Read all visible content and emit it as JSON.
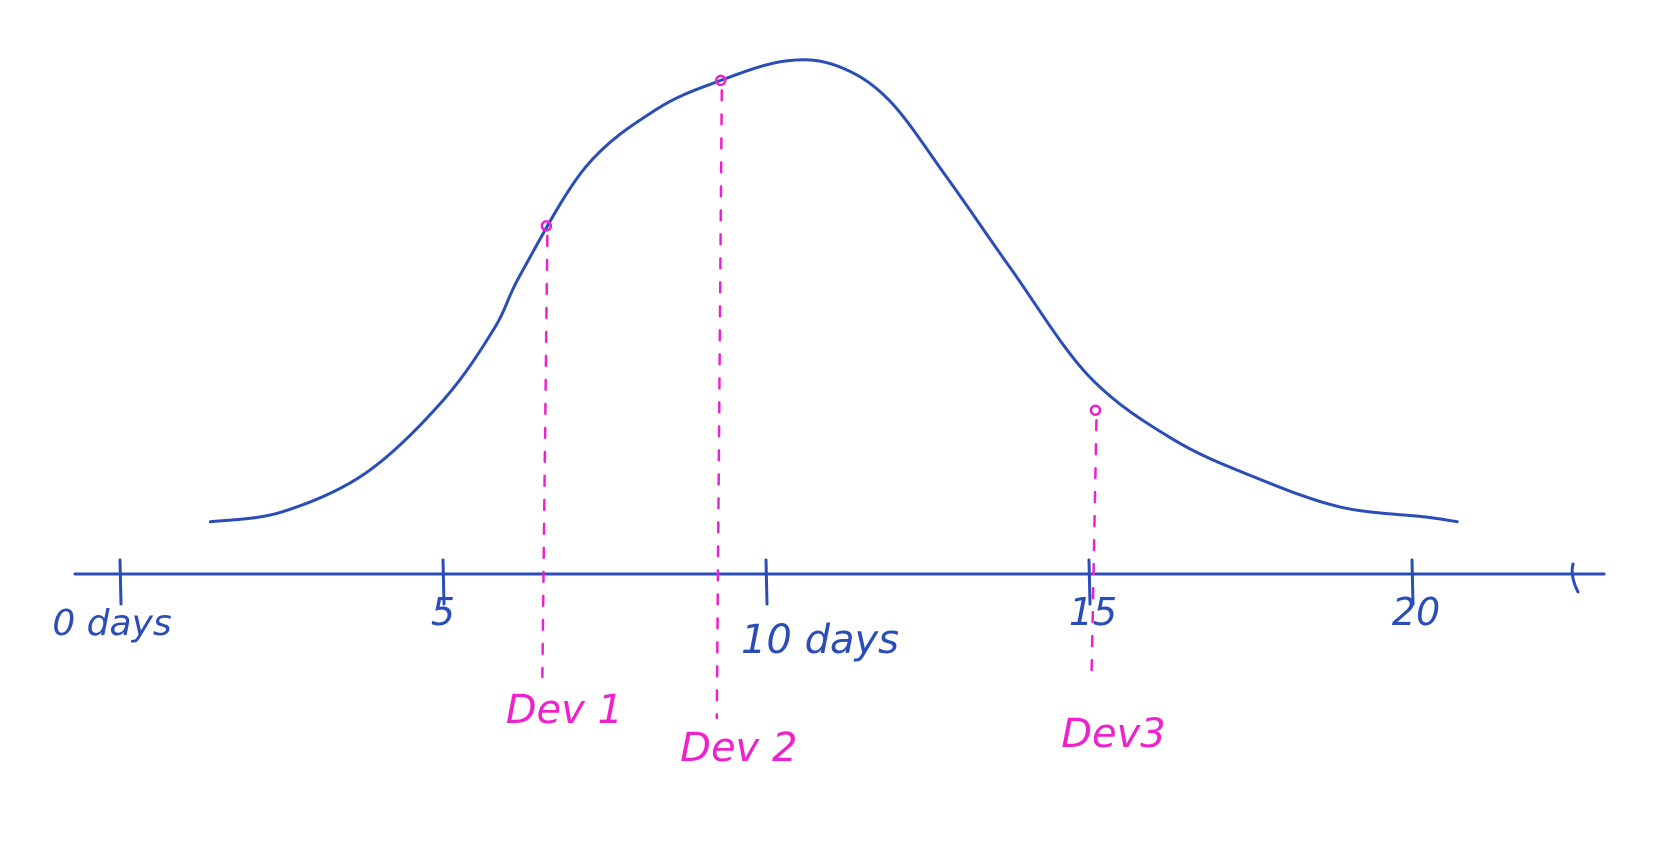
{
  "colors": {
    "curve": "#2a4db8",
    "axis": "#2a4db8",
    "dev": "#ee22cc",
    "background": "#ffffff"
  },
  "chart_data": {
    "type": "line",
    "title": "",
    "xlabel": "",
    "ylabel": "",
    "grid": false,
    "xlim": [
      0,
      21.6
    ],
    "ylim": [
      0,
      1
    ],
    "x_ticks": [
      0,
      5,
      10,
      15,
      20
    ],
    "tick_labels": [
      {
        "x": 0,
        "text": "0 days"
      },
      {
        "x": 5,
        "text": "5"
      },
      {
        "x": 10,
        "text": "10 days"
      },
      {
        "x": 15,
        "text": "15"
      },
      {
        "x": 20,
        "text": "20"
      }
    ],
    "series": [
      {
        "x": [
          1.4,
          2.5,
          3.8,
          5.0,
          5.8,
          6.2,
          7.2,
          8.3,
          9.3,
          10.3,
          11.1,
          11.9,
          12.8,
          13.8,
          15.0,
          16.3,
          17.6,
          18.9,
          20.2,
          20.7
        ],
        "values": [
          0.05,
          0.07,
          0.15,
          0.3,
          0.45,
          0.56,
          0.78,
          0.9,
          0.96,
          1.0,
          0.99,
          0.92,
          0.76,
          0.57,
          0.35,
          0.22,
          0.14,
          0.08,
          0.06,
          0.05
        ]
      }
    ],
    "markers": [
      {
        "label": "Dev 1",
        "x": 6.6,
        "y": 0.66
      },
      {
        "label": "Dev 2",
        "x": 9.3,
        "y": 0.96
      },
      {
        "label": "Dev3",
        "x": 15.1,
        "y": 0.28
      }
    ]
  }
}
